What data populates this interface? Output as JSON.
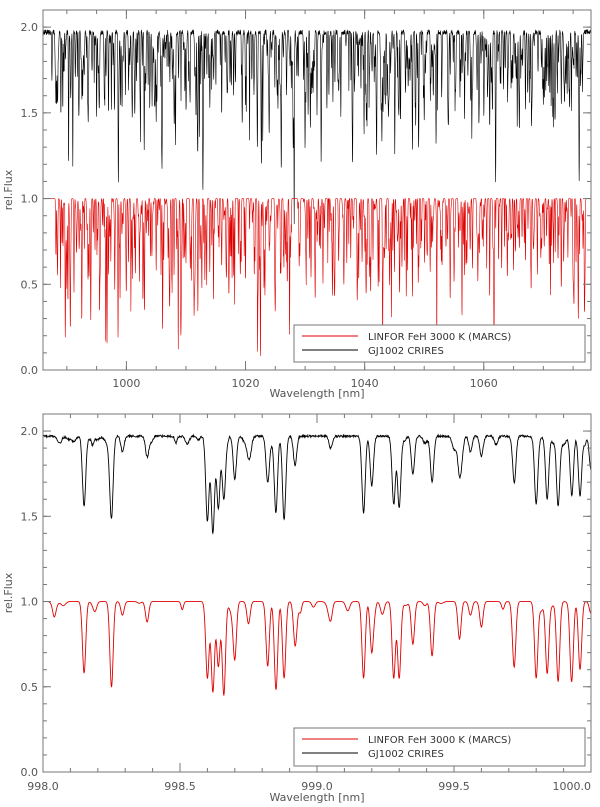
{
  "chart_data": [
    {
      "type": "line",
      "xlabel": "Wavelength [nm]",
      "ylabel": "rel.Flux",
      "xlim": [
        986,
        1078
      ],
      "ylim": [
        0,
        2.1
      ],
      "x_ticks": [
        1000,
        1020,
        1040,
        1060
      ],
      "x_tick_labels": [
        "1000",
        "1020",
        "1040",
        "1060"
      ],
      "y_ticks": [
        0,
        0.5,
        1.0,
        1.5,
        2.0
      ],
      "y_tick_labels": [
        "0.0",
        "0.5",
        "1.0",
        "1.5",
        "2.0"
      ],
      "legend_placement": "bottom-right",
      "legend": [
        "LINFOR FeH 3000 K (MARCS)",
        "GJ1002 CRIRES"
      ],
      "series": [
        {
          "name": "LINFOR FeH 3000 K (MARCS)",
          "color": "#e00000",
          "continuum": 1.0,
          "x": [
            988.5,
            990.0,
            990.6,
            991.2,
            992.5,
            994.0,
            995.5,
            997.0,
            998.6,
            1000.0,
            1001.5,
            1003.0,
            1005.0,
            1006.1,
            1008.0,
            1010.0,
            1012.0,
            1014.0,
            1016.0,
            1018.0,
            1020.0,
            1022.5,
            1025.0,
            1027.0,
            1029.0,
            1031.0,
            1033.0,
            1035.0,
            1037.0,
            1039.0,
            1041.0,
            1043.0,
            1045.0,
            1047.0,
            1049.0,
            1051.0,
            1053.0,
            1055.0,
            1057.0,
            1059.0,
            1061.0,
            1063.0,
            1065.0,
            1067.0,
            1069.0,
            1071.0,
            1073.0,
            1075.0,
            1077.0
          ],
          "y": [
            0.88,
            0.5,
            0.42,
            0.45,
            0.55,
            0.6,
            0.52,
            0.58,
            0.46,
            0.55,
            0.6,
            0.52,
            0.58,
            0.43,
            0.55,
            0.62,
            0.5,
            0.57,
            0.6,
            0.55,
            0.52,
            0.58,
            0.48,
            0.56,
            0.62,
            0.55,
            0.5,
            0.58,
            0.63,
            0.52,
            0.6,
            0.55,
            0.57,
            0.62,
            0.5,
            0.58,
            0.6,
            0.53,
            0.62,
            0.57,
            0.55,
            0.6,
            0.58,
            0.63,
            0.56,
            0.6,
            0.52,
            0.62,
            0.6
          ]
        },
        {
          "name": "GJ1002 CRIRES",
          "color": "#000000",
          "continuum": 1.97,
          "x": [
            987.5,
            989.0,
            990.3,
            991.0,
            992.0,
            993.5,
            995.0,
            997.0,
            999.0,
            1001.0,
            1003.0,
            1005.0,
            1006.0,
            1008.0,
            1010.0,
            1012.0,
            1014.0,
            1016.0,
            1018.0,
            1020.0,
            1022.0,
            1024.0,
            1026.0,
            1028.0,
            1030.0,
            1032.0,
            1034.0,
            1036.0,
            1038.0,
            1039.9,
            1042.0,
            1044.0,
            1046.0,
            1048.0,
            1050.0,
            1052.0,
            1054.0,
            1056.0,
            1058.0,
            1060.0,
            1062.0,
            1064.0,
            1066.0,
            1068.0,
            1070.0,
            1072.0,
            1074.0,
            1076.0
          ],
          "y": [
            1.68,
            1.48,
            1.38,
            1.45,
            1.5,
            1.6,
            1.47,
            1.52,
            1.55,
            1.5,
            1.58,
            1.45,
            1.4,
            1.55,
            1.62,
            1.5,
            1.58,
            1.48,
            1.6,
            1.55,
            1.52,
            1.58,
            1.45,
            1.62,
            1.55,
            1.5,
            1.6,
            1.48,
            1.58,
            1.38,
            1.55,
            1.6,
            1.5,
            1.58,
            1.62,
            1.52,
            1.57,
            1.6,
            1.5,
            1.62,
            1.55,
            1.58,
            1.63,
            1.52,
            1.6,
            1.57,
            1.62,
            1.6
          ]
        }
      ]
    },
    {
      "type": "line",
      "xlabel": "Wavelength [nm]",
      "ylabel": "rel.Flux",
      "xlim": [
        998.0,
        1000.0
      ],
      "ylim": [
        0,
        2.1
      ],
      "x_ticks": [
        998.0,
        998.5,
        999.0,
        999.5,
        1000.0
      ],
      "x_tick_labels": [
        "998.0",
        "998.5",
        "999.0",
        "999.5",
        "1000.0"
      ],
      "y_ticks": [
        0,
        0.5,
        1.0,
        1.5,
        2.0
      ],
      "y_tick_labels": [
        "0.0",
        "0.5",
        "1.0",
        "1.5",
        "2.0"
      ],
      "legend_placement": "bottom-right",
      "legend": [
        "LINFOR FeH 3000 K (MARCS)",
        "GJ1002 CRIRES"
      ],
      "series": [
        {
          "name": "LINFOR FeH 3000 K (MARCS)",
          "color": "#e00000",
          "continuum": 1.0,
          "x": [
            998.15,
            998.25,
            998.29,
            998.38,
            998.6,
            998.62,
            998.64,
            998.66,
            998.7,
            998.75,
            998.82,
            998.85,
            998.88,
            998.92,
            999.05,
            999.17,
            999.2,
            999.28,
            999.3,
            999.35,
            999.42,
            999.52,
            999.56,
            999.6,
            999.72,
            999.8,
            999.84,
            999.88,
            999.93,
            999.96,
            1000.0
          ],
          "y": [
            0.58,
            0.53,
            0.92,
            0.88,
            0.55,
            0.47,
            0.62,
            0.45,
            0.67,
            0.87,
            0.62,
            0.5,
            0.55,
            0.77,
            0.9,
            0.55,
            0.7,
            0.55,
            0.55,
            0.75,
            0.68,
            0.78,
            0.92,
            0.85,
            0.65,
            0.55,
            0.58,
            0.53,
            0.57,
            0.6,
            0.93
          ]
        },
        {
          "name": "GJ1002 CRIRES",
          "color": "#000000",
          "continuum": 1.97,
          "x": [
            998.15,
            998.25,
            998.29,
            998.38,
            998.6,
            998.62,
            998.64,
            998.66,
            998.7,
            998.75,
            998.82,
            998.85,
            998.88,
            998.92,
            999.05,
            999.17,
            999.2,
            999.28,
            999.3,
            999.35,
            999.42,
            999.52,
            999.56,
            999.6,
            999.72,
            999.8,
            999.84,
            999.88,
            999.93,
            999.96,
            1000.0
          ],
          "y": [
            1.56,
            1.52,
            1.88,
            1.85,
            1.47,
            1.4,
            1.55,
            1.6,
            1.72,
            1.88,
            1.7,
            1.52,
            1.48,
            1.8,
            1.9,
            1.52,
            1.68,
            1.57,
            1.55,
            1.75,
            1.7,
            1.78,
            1.88,
            1.85,
            1.7,
            1.57,
            1.6,
            1.56,
            1.62,
            1.62,
            1.77
          ]
        }
      ]
    }
  ]
}
